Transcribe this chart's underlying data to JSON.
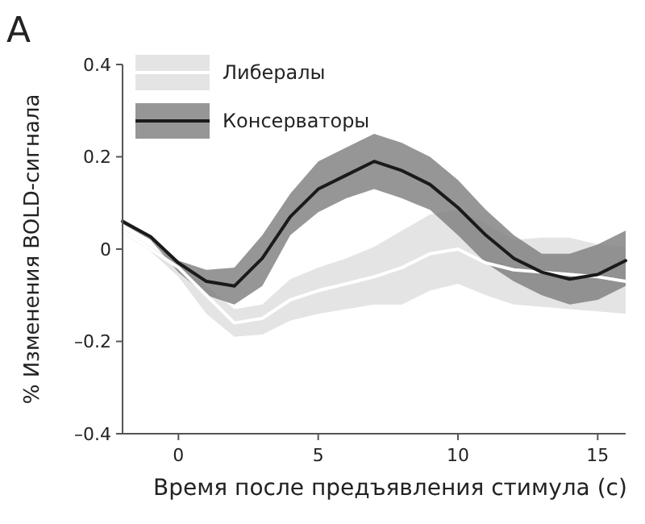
{
  "chart_data": {
    "type": "line",
    "xlabel": "Время после предъявления стимула (с)",
    "ylabel": "% Изменения BOLD-сигнала",
    "annotations": [
      "A"
    ],
    "xlim": [
      -2,
      16
    ],
    "xticks": [
      0,
      5,
      10,
      15
    ],
    "ylim": [
      -0.4,
      0.4
    ],
    "yticks": [
      {
        "value": -0.4,
        "label": "–0.4"
      },
      {
        "value": -0.2,
        "label": "–0.2"
      },
      0,
      0.2,
      0.4
    ],
    "x": [
      -2,
      -1,
      0,
      1,
      2,
      3,
      4,
      5,
      6,
      7,
      8,
      9,
      10,
      11,
      12,
      13,
      14,
      15,
      16
    ],
    "legend": "top left",
    "grid": false,
    "marker": "none",
    "line_style": "solid",
    "series": [
      {
        "name": "Либералы",
        "color": "#ffffff",
        "values": [
          0.04,
          0.0,
          -0.04,
          -0.1,
          -0.16,
          -0.15,
          -0.11,
          -0.09,
          -0.075,
          -0.06,
          -0.04,
          -0.01,
          0.0,
          -0.03,
          -0.045,
          -0.05,
          -0.055,
          -0.06,
          -0.07
        ],
        "upper": [
          0.045,
          0.005,
          -0.03,
          -0.08,
          -0.13,
          -0.12,
          -0.065,
          -0.04,
          -0.02,
          0.005,
          0.04,
          0.075,
          0.085,
          0.055,
          0.02,
          0.025,
          0.025,
          0.01,
          0.005
        ],
        "lower": [
          0.035,
          -0.005,
          -0.06,
          -0.14,
          -0.19,
          -0.185,
          -0.155,
          -0.14,
          -0.13,
          -0.12,
          -0.12,
          -0.09,
          -0.075,
          -0.1,
          -0.12,
          -0.125,
          -0.13,
          -0.135,
          -0.14
        ]
      },
      {
        "name": "Консерваторы",
        "color": "#1a1a1a",
        "values": [
          0.06,
          0.027,
          -0.03,
          -0.07,
          -0.08,
          -0.02,
          0.07,
          0.13,
          0.16,
          0.19,
          0.17,
          0.14,
          0.09,
          0.03,
          -0.02,
          -0.05,
          -0.065,
          -0.055,
          -0.025
        ],
        "upper": [
          0.065,
          0.03,
          -0.025,
          -0.045,
          -0.04,
          0.03,
          0.12,
          0.19,
          0.22,
          0.25,
          0.23,
          0.2,
          0.15,
          0.085,
          0.03,
          -0.01,
          -0.01,
          0.01,
          0.04
        ],
        "lower": [
          0.055,
          0.02,
          -0.05,
          -0.1,
          -0.12,
          -0.08,
          0.03,
          0.08,
          0.11,
          0.13,
          0.11,
          0.085,
          0.03,
          -0.03,
          -0.07,
          -0.1,
          -0.12,
          -0.11,
          -0.08
        ]
      }
    ]
  }
}
